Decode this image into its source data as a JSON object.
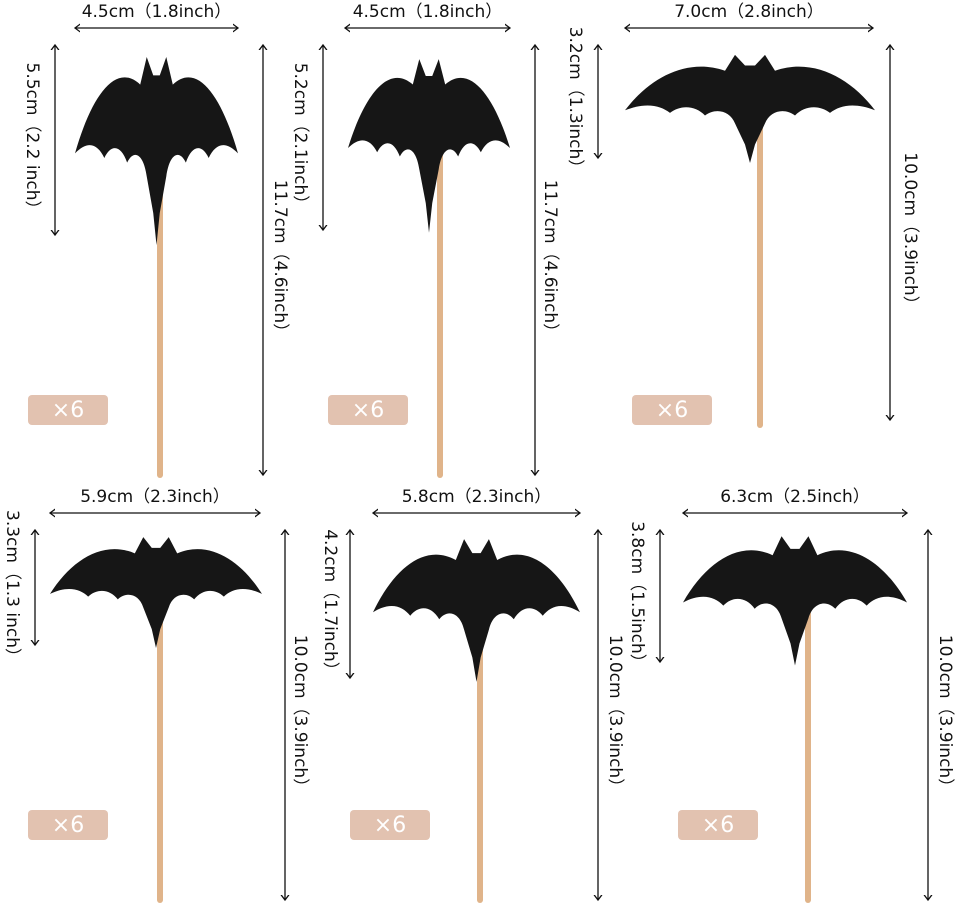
{
  "items": [
    {
      "width": "4.5cm（1.8inch）",
      "height": "5.5cm（2.2 inch）",
      "length": "11.7cm（4.6inch）",
      "quantity": "×6"
    },
    {
      "width": "4.5cm（1.8inch）",
      "height": "5.2cm（2.1inch）",
      "length": "11.7cm（4.6inch）",
      "quantity": "×6"
    },
    {
      "width": "7.0cm（2.8inch）",
      "height": "3.2cm（1.3inch）",
      "length": "10.0cm（3.9inch）",
      "quantity": "×6"
    },
    {
      "width": "5.9cm（2.3inch）",
      "height": "3.3cm（1.3 inch）",
      "length": "10.0cm（3.9inch）",
      "quantity": "×6"
    },
    {
      "width": "5.8cm（2.3inch）",
      "height": "4.2cm（1.7inch）",
      "length": "10.0cm（3.9inch）",
      "quantity": "×6"
    },
    {
      "width": "6.3cm（2.5inch）",
      "height": "3.8cm（1.5inch）",
      "length": "10.0cm（3.9inch）",
      "quantity": "×6"
    }
  ]
}
